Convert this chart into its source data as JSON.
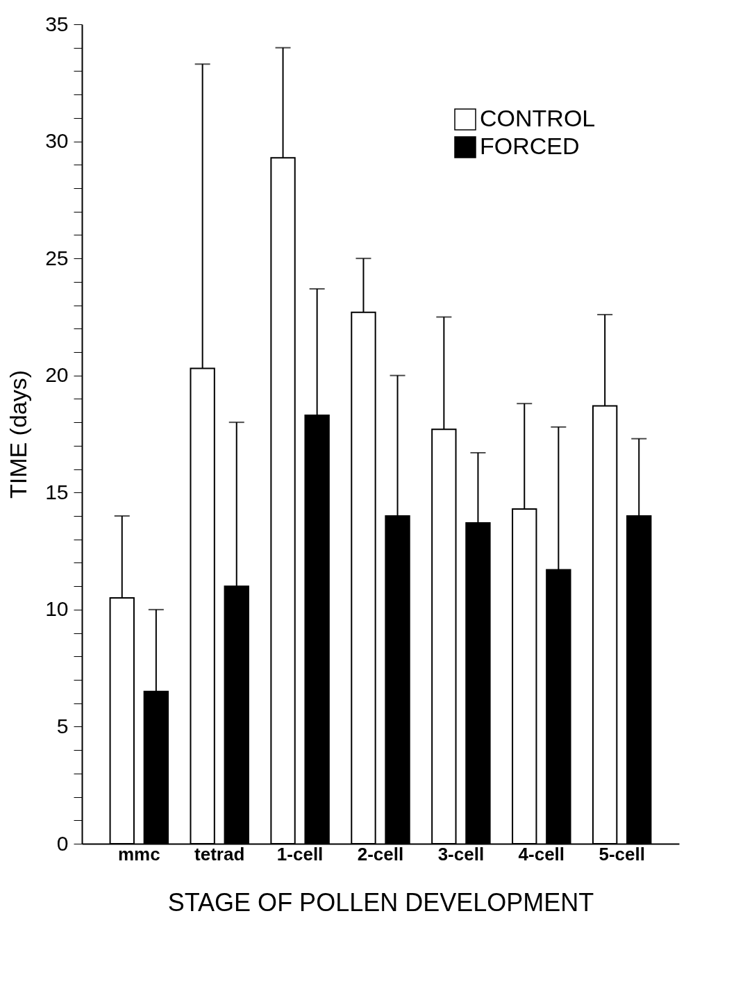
{
  "chart_data": {
    "type": "bar",
    "xlabel": "STAGE OF POLLEN DEVELOPMENT",
    "ylabel": "TIME (days)",
    "categories": [
      "mmc",
      "tetrad",
      "1-cell",
      "2-cell",
      "3-cell",
      "4-cell",
      "5-cell"
    ],
    "series": [
      {
        "name": "CONTROL",
        "color": "#ffffff",
        "values": [
          10.5,
          20.3,
          29.3,
          22.7,
          17.7,
          14.3,
          18.7
        ],
        "errors": [
          [
            10.5,
            14.0
          ],
          [
            20.3,
            33.3
          ],
          [
            29.3,
            34.0
          ],
          [
            22.7,
            25.0
          ],
          [
            17.7,
            22.5
          ],
          [
            14.3,
            18.8
          ],
          [
            18.7,
            22.6
          ]
        ]
      },
      {
        "name": "FORCED",
        "color": "#000000",
        "values": [
          6.5,
          11.0,
          18.3,
          14.0,
          13.7,
          11.7,
          14.0
        ],
        "errors": [
          [
            6.5,
            10.0
          ],
          [
            11.0,
            18.0
          ],
          [
            18.3,
            23.7
          ],
          [
            14.0,
            20.0
          ],
          [
            13.7,
            16.7
          ],
          [
            11.7,
            17.8
          ],
          [
            14.0,
            17.3
          ]
        ]
      }
    ],
    "ylim": [
      0,
      35
    ],
    "yticks": [
      0,
      {
        "value": 1,
        "label": null
      },
      {
        "value": 2,
        "label": null
      },
      {
        "value": 3,
        "label": null
      },
      {
        "value": 4,
        "label": null
      },
      5,
      {
        "value": 6,
        "label": null
      },
      {
        "value": 7,
        "label": null
      },
      {
        "value": 8,
        "label": null
      },
      {
        "value": 9,
        "label": null
      },
      10,
      {
        "value": 11,
        "label": null
      },
      {
        "value": 12,
        "label": null
      },
      {
        "value": 13,
        "label": null
      },
      {
        "value": 14,
        "label": null
      },
      15,
      {
        "value": 16,
        "label": null
      },
      {
        "value": 17,
        "label": null
      },
      {
        "value": 18,
        "label": null
      },
      {
        "value": 19,
        "label": null
      },
      20,
      {
        "value": 21,
        "label": null
      },
      {
        "value": 22,
        "label": null
      },
      {
        "value": 23,
        "label": null
      },
      {
        "value": 24,
        "label": null
      },
      25,
      {
        "value": 26,
        "label": null
      },
      {
        "value": 27,
        "label": null
      },
      {
        "value": 28,
        "label": null
      },
      {
        "value": 29,
        "label": null
      },
      30,
      {
        "value": 31,
        "label": null
      },
      {
        "value": 32,
        "label": null
      },
      {
        "value": 33,
        "label": null
      },
      {
        "value": 34,
        "label": null
      },
      35
    ],
    "grid": false,
    "legend": "top right"
  }
}
